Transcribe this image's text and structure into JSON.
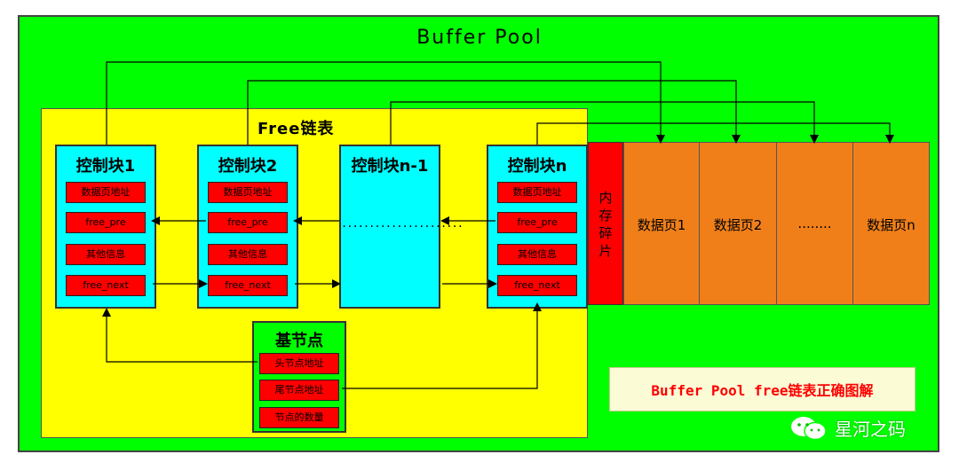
{
  "title": "Buffer Pool",
  "free_list": {
    "title": "Free链表",
    "blocks": [
      {
        "title": "控制块1",
        "fields": [
          "数据页地址",
          "free_pre",
          "其他信息",
          "free_next"
        ]
      },
      {
        "title": "控制块2",
        "fields": [
          "数据页地址",
          "free_pre",
          "其他信息",
          "free_next"
        ]
      },
      {
        "title": "控制块n-1",
        "ellipsis": "......................"
      },
      {
        "title": "控制块n",
        "fields": [
          "数据页地址",
          "free_pre",
          "其他信息",
          "free_next"
        ]
      }
    ]
  },
  "base_node": {
    "title": "基节点",
    "fields": [
      "头节点地址",
      "尾节点地址",
      "节点的数量"
    ]
  },
  "fragment": {
    "label": "内存碎片",
    "color": "#ff0000"
  },
  "data_pages": [
    "数据页1",
    "数据页2",
    "........",
    "数据页n"
  ],
  "note": "Buffer Pool free链表正确图解",
  "brand": "星河之码",
  "colors": {
    "background": "#00ff00",
    "free_panel": "#ffff00",
    "control_block": "#00ffff",
    "field": "#ff0000",
    "data_page": "#f07f1a",
    "note_text": "#ff0000"
  }
}
